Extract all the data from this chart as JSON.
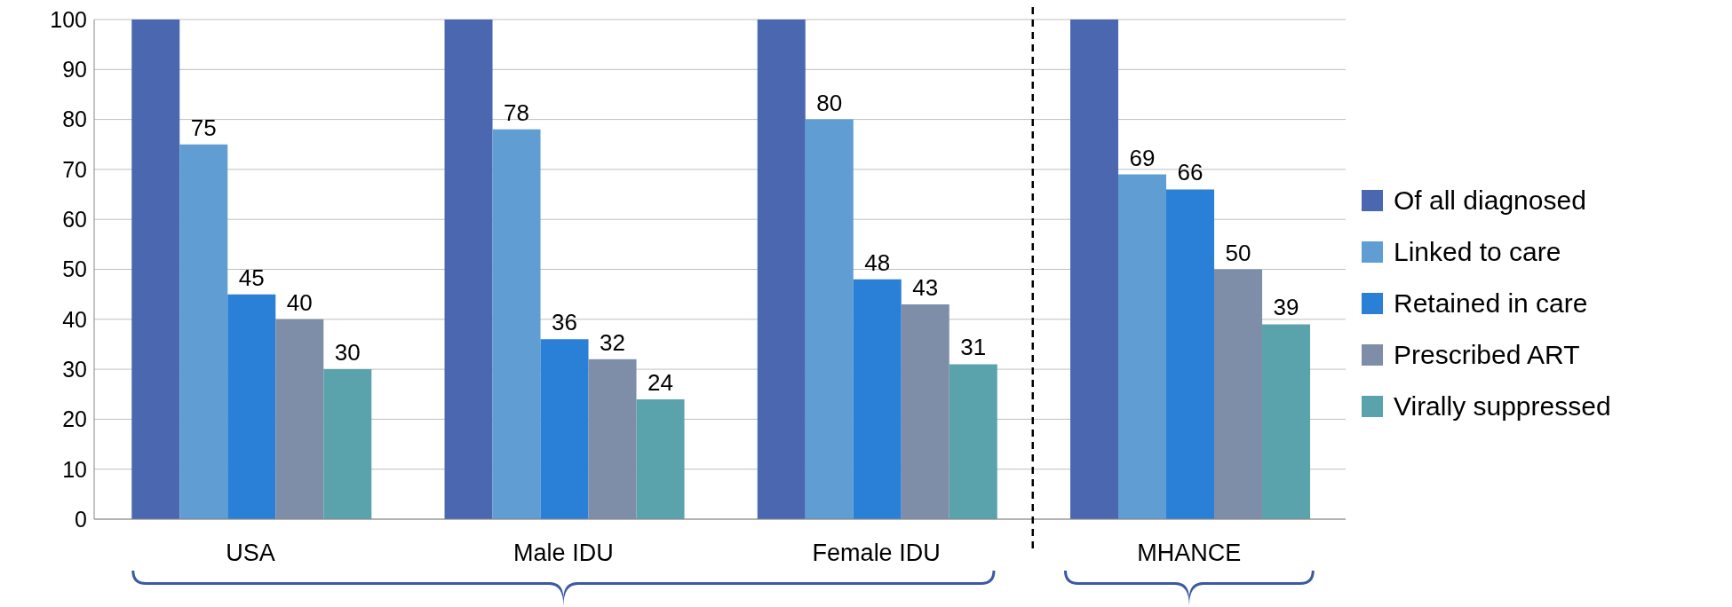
{
  "chart_data": {
    "type": "bar",
    "categories": [
      "USA",
      "Male IDU",
      "Female IDU",
      "MHANCE"
    ],
    "series": [
      {
        "name": "Of all diagnosed",
        "color": "#4a67b0",
        "values": [
          100,
          100,
          100,
          100
        ],
        "value_labels": [
          null,
          null,
          null,
          null
        ]
      },
      {
        "name": "Linked to care",
        "color": "#5f9dd3",
        "values": [
          75,
          78,
          80,
          69
        ],
        "value_labels": [
          "75",
          "78",
          "80",
          "69"
        ]
      },
      {
        "name": "Retained in care",
        "color": "#2a7fd6",
        "values": [
          45,
          36,
          48,
          66
        ],
        "value_labels": [
          "45",
          "36",
          "48",
          "66"
        ]
      },
      {
        "name": "Prescribed ART",
        "color": "#7f8ea8",
        "values": [
          40,
          32,
          43,
          50
        ],
        "value_labels": [
          "40",
          "32",
          "43",
          "50"
        ]
      },
      {
        "name": "Virally suppressed",
        "color": "#5aa3ad",
        "values": [
          30,
          24,
          31,
          39
        ],
        "value_labels": [
          "30",
          "24",
          "31",
          "39"
        ]
      }
    ],
    "ylim": [
      0,
      100
    ],
    "yticks": [
      0,
      10,
      20,
      30,
      40,
      50,
      60,
      70,
      80,
      90,
      100
    ],
    "grid": "y",
    "legend": "right"
  }
}
